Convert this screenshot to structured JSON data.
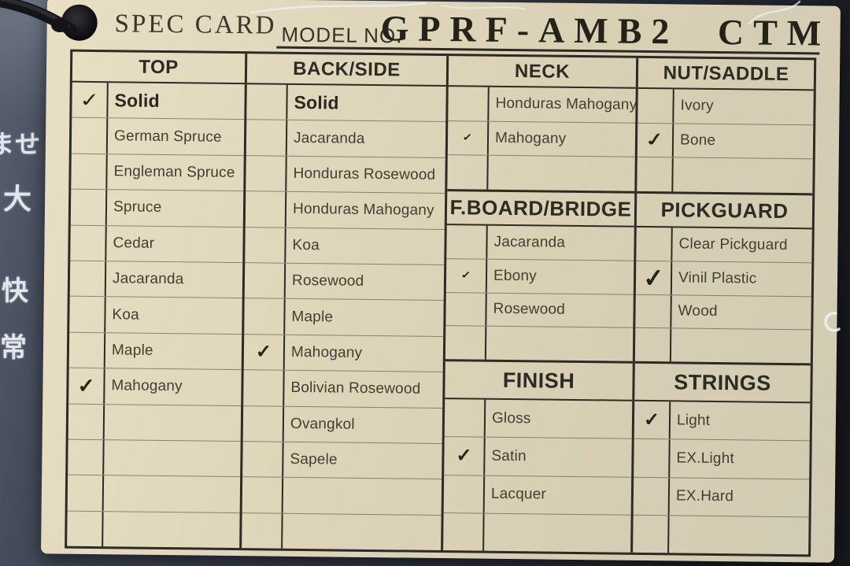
{
  "header": {
    "title": "SPEC CARD",
    "model_label": "MODEL NO.",
    "model_number": "GPRF-AMB2 CTM"
  },
  "check_glyph": "✓",
  "background": {
    "side_text": [
      "ませ",
      "大",
      "快",
      "常"
    ]
  },
  "sections": {
    "top": {
      "title": "TOP",
      "rows": [
        {
          "label": "Solid",
          "bold": true,
          "checked": true,
          "check_variant": "thin"
        },
        {
          "label": "German Spruce"
        },
        {
          "label": "Engleman Spruce"
        },
        {
          "label": "Spruce"
        },
        {
          "label": "Cedar"
        },
        {
          "label": "Jacaranda"
        },
        {
          "label": "Koa"
        },
        {
          "label": "Maple"
        },
        {
          "label": "Mahogany",
          "checked": true,
          "check_variant": "bold"
        },
        {
          "label": ""
        },
        {
          "label": ""
        },
        {
          "label": ""
        },
        {
          "label": ""
        }
      ]
    },
    "back_side": {
      "title": "BACK/SIDE",
      "rows": [
        {
          "label": "Solid",
          "bold": true
        },
        {
          "label": "Jacaranda"
        },
        {
          "label": "Honduras Rosewood"
        },
        {
          "label": "Honduras Mahogany"
        },
        {
          "label": "Koa"
        },
        {
          "label": "Rosewood"
        },
        {
          "label": "Maple"
        },
        {
          "label": "Mahogany",
          "checked": true,
          "check_variant": "normal"
        },
        {
          "label": "Bolivian Rosewood"
        },
        {
          "label": "Ovangkol"
        },
        {
          "label": "Sapele"
        },
        {
          "label": ""
        },
        {
          "label": ""
        }
      ]
    },
    "neck": {
      "title": "NECK",
      "rows": [
        {
          "label": "Honduras Mahogany"
        },
        {
          "label": "Mahogany",
          "checked": true,
          "check_variant": "small"
        },
        {
          "label": ""
        }
      ]
    },
    "fboard_bridge": {
      "title": "F.BOARD/BRIDGE",
      "rows": [
        {
          "label": "Jacaranda"
        },
        {
          "label": "Ebony",
          "checked": true,
          "check_variant": "small"
        },
        {
          "label": "Rosewood"
        },
        {
          "label": ""
        }
      ]
    },
    "finish": {
      "title": "FINISH",
      "rows": [
        {
          "label": "Gloss"
        },
        {
          "label": "Satin",
          "checked": true,
          "check_variant": "normal"
        },
        {
          "label": "Lacquer"
        },
        {
          "label": ""
        }
      ]
    },
    "nut_saddle": {
      "title": "NUT/SADDLE",
      "rows": [
        {
          "label": "Ivory"
        },
        {
          "label": "Bone",
          "checked": true,
          "check_variant": "swoosh"
        },
        {
          "label": ""
        }
      ]
    },
    "pickguard": {
      "title": "PICKGUARD",
      "rows": [
        {
          "label": "Clear Pickguard"
        },
        {
          "label": "Vinil Plastic",
          "checked": true,
          "check_variant": "large"
        },
        {
          "label": "Wood"
        },
        {
          "label": ""
        }
      ]
    },
    "strings": {
      "title": "STRINGS",
      "rows": [
        {
          "label": "Light",
          "checked": true,
          "check_variant": "normal"
        },
        {
          "label": "EX.Light"
        },
        {
          "label": "EX.Hard"
        },
        {
          "label": ""
        }
      ]
    }
  }
}
